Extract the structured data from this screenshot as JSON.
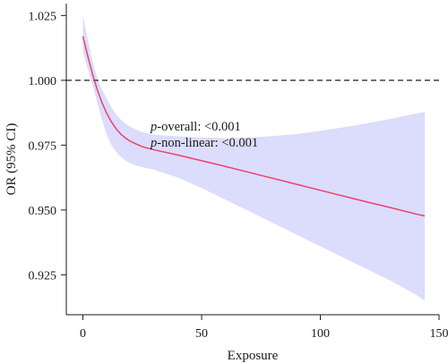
{
  "chart_data": {
    "type": "line",
    "xlabel": "Exposure",
    "ylabel": "OR (95% CI)",
    "xlim": [
      -7,
      150
    ],
    "ylim": [
      0.9096,
      1.0296
    ],
    "x_ticks": [
      0,
      50,
      100,
      150
    ],
    "y_ticks": [
      0.925,
      0.95,
      0.975,
      1.0,
      1.025
    ],
    "y_tick_labels": [
      "0.925",
      "0.950",
      "0.975",
      "1.000",
      "1.025"
    ],
    "reference_line": {
      "y": 1.0,
      "style": "dashed",
      "color": "#333333"
    },
    "line_color": "#e8436a",
    "band_color": "#dcdcfc",
    "grid": false,
    "annotations": [
      {
        "italic": "p",
        "text": "-overall: <0.001"
      },
      {
        "italic": "p",
        "text": "-non-linear: <0.001"
      }
    ],
    "series": [
      {
        "x": [
          0,
          2,
          4,
          6,
          8,
          10,
          12,
          14,
          16,
          18,
          20,
          22,
          25,
          30,
          40,
          50,
          60,
          70,
          80,
          90,
          100,
          110,
          120,
          130,
          140,
          144
        ],
        "y": [
          1.017,
          1.0095,
          1.0025,
          0.9965,
          0.9915,
          0.9873,
          0.984,
          0.9813,
          0.9792,
          0.9777,
          0.9765,
          0.9756,
          0.9744,
          0.9732,
          0.9712,
          0.969,
          0.9668,
          0.9645,
          0.9622,
          0.9599,
          0.9576,
          0.9553,
          0.953,
          0.9508,
          0.9485,
          0.9477
        ],
        "lower": [
          1.011,
          1.0045,
          0.9985,
          0.9915,
          0.985,
          0.979,
          0.975,
          0.9725,
          0.9705,
          0.969,
          0.968,
          0.9673,
          0.9665,
          0.9655,
          0.9625,
          0.9585,
          0.954,
          0.9495,
          0.945,
          0.9405,
          0.936,
          0.9315,
          0.927,
          0.9225,
          0.9175,
          0.915
        ],
        "upper": [
          1.025,
          1.016,
          1.0075,
          1.001,
          0.9965,
          0.993,
          0.9895,
          0.9868,
          0.9848,
          0.9832,
          0.982,
          0.9812,
          0.98,
          0.979,
          0.9784,
          0.9779,
          0.9777,
          0.9779,
          0.9785,
          0.9793,
          0.9805,
          0.9819,
          0.9835,
          0.9852,
          0.9871,
          0.9878
        ]
      }
    ]
  }
}
